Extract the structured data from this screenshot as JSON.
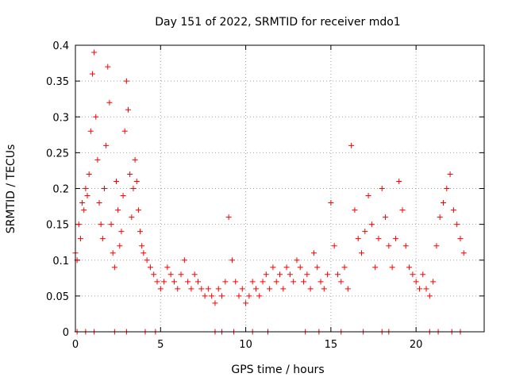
{
  "chart_data": {
    "type": "scatter",
    "title": "Day 151 of 2022, SRMTID for receiver mdo1",
    "xlabel": "GPS time / hours",
    "ylabel": "SRMTID / TECUs",
    "xlim": [
      0,
      24
    ],
    "ylim": [
      0,
      0.4
    ],
    "xticks": [
      0,
      5,
      10,
      15,
      20
    ],
    "xtick_labels": [
      "0",
      "5",
      "10",
      "15",
      "20"
    ],
    "yticks": [
      0,
      0.05,
      0.1,
      0.15,
      0.2,
      0.25,
      0.3,
      0.35,
      0.4
    ],
    "ytick_labels": [
      "0",
      "0.05",
      "0.1",
      "0.15",
      "0.2",
      "0.25",
      "0.3",
      "0.35",
      "0.4"
    ],
    "grid": true,
    "marker": "plus",
    "color": "#ff0000",
    "series": [
      {
        "name": "mdo1",
        "x": [
          0.0,
          0.1,
          0.2,
          0.3,
          0.4,
          0.5,
          0.6,
          0.7,
          0.8,
          0.9,
          1.0,
          1.1,
          1.2,
          1.3,
          1.4,
          1.5,
          1.6,
          1.7,
          1.8,
          1.9,
          2.0,
          2.1,
          2.2,
          2.3,
          2.4,
          2.5,
          2.6,
          2.7,
          2.8,
          2.9,
          3.0,
          3.1,
          3.2,
          3.3,
          3.4,
          3.5,
          3.6,
          3.7,
          3.8,
          3.9,
          4.0,
          4.2,
          4.4,
          4.6,
          4.8,
          5.0,
          5.2,
          5.4,
          5.6,
          5.8,
          6.0,
          6.2,
          6.4,
          6.6,
          6.8,
          7.0,
          7.2,
          7.4,
          7.6,
          7.8,
          8.0,
          8.2,
          8.4,
          8.6,
          8.8,
          9.0,
          9.2,
          9.4,
          9.6,
          9.8,
          10.0,
          10.2,
          10.4,
          10.6,
          10.8,
          11.0,
          11.2,
          11.4,
          11.6,
          11.8,
          12.0,
          12.2,
          12.4,
          12.6,
          12.8,
          13.0,
          13.2,
          13.4,
          13.6,
          13.8,
          14.0,
          14.2,
          14.4,
          14.6,
          14.8,
          15.0,
          15.2,
          15.4,
          15.6,
          15.8,
          16.0,
          16.2,
          16.4,
          16.6,
          16.8,
          17.0,
          17.2,
          17.4,
          17.6,
          17.8,
          18.0,
          18.2,
          18.4,
          18.6,
          18.8,
          19.0,
          19.2,
          19.4,
          19.6,
          19.8,
          20.0,
          20.2,
          20.4,
          20.6,
          20.8,
          21.0,
          21.2,
          21.4,
          21.6,
          21.8,
          22.0,
          22.2,
          22.4,
          22.6,
          22.8
        ],
        "y": [
          0.11,
          0.1,
          0.15,
          0.13,
          0.18,
          0.17,
          0.2,
          0.19,
          0.22,
          0.28,
          0.36,
          0.39,
          0.3,
          0.24,
          0.18,
          0.15,
          0.13,
          0.2,
          0.26,
          0.37,
          0.32,
          0.15,
          0.11,
          0.09,
          0.21,
          0.17,
          0.12,
          0.14,
          0.19,
          0.28,
          0.35,
          0.31,
          0.22,
          0.16,
          0.2,
          0.24,
          0.21,
          0.17,
          0.14,
          0.12,
          0.11,
          0.1,
          0.09,
          0.08,
          0.07,
          0.06,
          0.07,
          0.09,
          0.08,
          0.07,
          0.06,
          0.08,
          0.1,
          0.07,
          0.06,
          0.08,
          0.07,
          0.06,
          0.05,
          0.06,
          0.05,
          0.04,
          0.06,
          0.05,
          0.07,
          0.16,
          0.1,
          0.07,
          0.05,
          0.06,
          0.04,
          0.05,
          0.07,
          0.06,
          0.05,
          0.07,
          0.08,
          0.06,
          0.09,
          0.07,
          0.08,
          0.06,
          0.09,
          0.08,
          0.07,
          0.1,
          0.09,
          0.07,
          0.08,
          0.06,
          0.11,
          0.09,
          0.07,
          0.06,
          0.08,
          0.18,
          0.12,
          0.08,
          0.07,
          0.09,
          0.06,
          0.26,
          0.17,
          0.13,
          0.11,
          0.14,
          0.19,
          0.15,
          0.09,
          0.13,
          0.2,
          0.16,
          0.12,
          0.09,
          0.13,
          0.21,
          0.17,
          0.12,
          0.09,
          0.08,
          0.07,
          0.06,
          0.08,
          0.06,
          0.05,
          0.07,
          0.12,
          0.16,
          0.18,
          0.2,
          0.22,
          0.17,
          0.15,
          0.13,
          0.11
        ]
      }
    ],
    "zero_markers_x": [
      0.1,
      0.6,
      1.1,
      2.3,
      3.0,
      4.1,
      4.7,
      8.2,
      8.6,
      9.3,
      10.4,
      11.3,
      13.5,
      14.3,
      15.6,
      16.9,
      18.0,
      18.4,
      20.8,
      21.3,
      22.1,
      22.6
    ]
  }
}
